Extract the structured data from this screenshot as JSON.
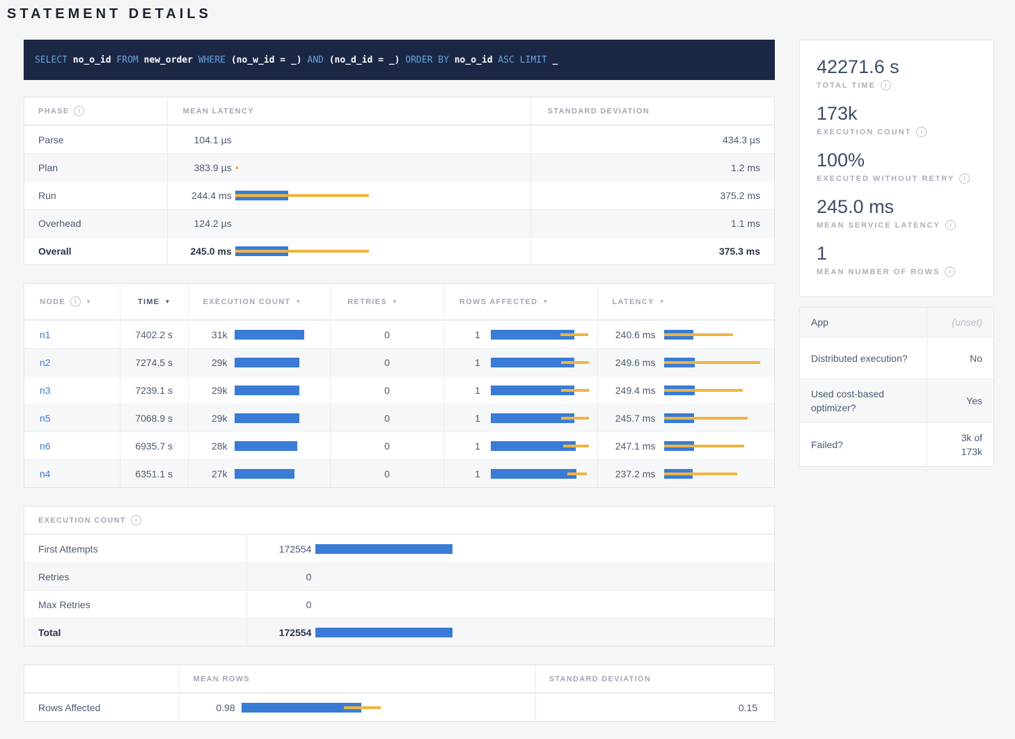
{
  "page": {
    "title": "STATEMENT DETAILS"
  },
  "icons": {
    "info": "i",
    "sort_desc": "▼"
  },
  "colors": {
    "bar_blue": "#3A7CD5",
    "bar_yellow": "#EEB541",
    "link": "#3A7CD5",
    "sql_bg": "#1A2745",
    "sql_keyword": "#67A3DB"
  },
  "sql": {
    "tokens": [
      "SELECT",
      "no_o_id",
      "FROM",
      "new_order",
      "WHERE",
      "(no_w_id = _)",
      "AND",
      "(no_d_id = _)",
      "ORDER BY",
      "no_o_id",
      "ASC",
      "LIMIT",
      "_"
    ]
  },
  "phase_table": {
    "col_phase": "PHASE",
    "col_mean": "MEAN LATENCY",
    "col_sd": "STANDARD DEVIATION",
    "rows": [
      {
        "label": "Parse",
        "mean": "104.1 µs",
        "sd": "434.3 µs"
      },
      {
        "label": "Plan",
        "mean": "383.9 µs",
        "sd": "1.2 ms",
        "bar": {
          "blue": 0,
          "yellow": 3,
          "yellowLeft": 1
        }
      },
      {
        "label": "Run",
        "mean": "244.4 ms",
        "sd": "375.2 ms",
        "bar": {
          "blue": 76,
          "yellow": 192,
          "yellowLeft": 0
        }
      },
      {
        "label": "Overhead",
        "mean": "124.2 µs",
        "sd": "1.1 ms"
      },
      {
        "label": "Overall",
        "mean": "245.0 ms",
        "sd": "375.3 ms",
        "bar": {
          "blue": 76,
          "yellow": 192,
          "yellowLeft": 0
        }
      }
    ]
  },
  "node_table": {
    "col_node": "NODE",
    "col_time": "TIME",
    "col_exec": "EXECUTION COUNT",
    "col_retries": "RETRIES",
    "col_rows": "ROWS AFFECTED",
    "col_latency": "LATENCY",
    "rows": [
      {
        "node": "n1",
        "time": "7402.2 s",
        "exec": "31k",
        "exec_bar": {
          "blue": 100,
          "yellow": 0,
          "yellowLeft": 0
        },
        "retries": "0",
        "rows": "1",
        "rows_bar": {
          "blue": 120,
          "yellow": 40,
          "yellowLeft": 100
        },
        "latency": "240.6 ms",
        "lat_bar": {
          "blue": 42,
          "yellow": 99,
          "yellowLeft": 0
        }
      },
      {
        "node": "n2",
        "time": "7274.5 s",
        "exec": "29k",
        "exec_bar": {
          "blue": 93,
          "yellow": 0,
          "yellowLeft": 0
        },
        "retries": "0",
        "rows": "1",
        "rows_bar": {
          "blue": 120,
          "yellow": 40,
          "yellowLeft": 101
        },
        "latency": "249.6 ms",
        "lat_bar": {
          "blue": 44,
          "yellow": 138,
          "yellowLeft": 0
        }
      },
      {
        "node": "n3",
        "time": "7239.1 s",
        "exec": "29k",
        "exec_bar": {
          "blue": 93,
          "yellow": 0,
          "yellowLeft": 0
        },
        "retries": "0",
        "rows": "1",
        "rows_bar": {
          "blue": 120,
          "yellow": 40,
          "yellowLeft": 101
        },
        "latency": "249.4 ms",
        "lat_bar": {
          "blue": 44,
          "yellow": 113,
          "yellowLeft": 0
        }
      },
      {
        "node": "n5",
        "time": "7068.9 s",
        "exec": "29k",
        "exec_bar": {
          "blue": 93,
          "yellow": 0,
          "yellowLeft": 0
        },
        "retries": "0",
        "rows": "1",
        "rows_bar": {
          "blue": 120,
          "yellow": 40,
          "yellowLeft": 101
        },
        "latency": "245.7 ms",
        "lat_bar": {
          "blue": 43,
          "yellow": 120,
          "yellowLeft": 0
        }
      },
      {
        "node": "n6",
        "time": "6935.7 s",
        "exec": "28k",
        "exec_bar": {
          "blue": 90,
          "yellow": 0,
          "yellowLeft": 0
        },
        "retries": "0",
        "rows": "1",
        "rows_bar": {
          "blue": 122,
          "yellow": 37,
          "yellowLeft": 104
        },
        "latency": "247.1 ms",
        "lat_bar": {
          "blue": 43,
          "yellow": 115,
          "yellowLeft": 0
        }
      },
      {
        "node": "n4",
        "time": "6351.1 s",
        "exec": "27k",
        "exec_bar": {
          "blue": 86,
          "yellow": 0,
          "yellowLeft": 0
        },
        "retries": "0",
        "rows": "1",
        "rows_bar": {
          "blue": 123,
          "yellow": 28,
          "yellowLeft": 110
        },
        "latency": "237.2 ms",
        "lat_bar": {
          "blue": 41,
          "yellow": 105,
          "yellowLeft": 0
        }
      }
    ]
  },
  "execution_count_table": {
    "title": "EXECUTION COUNT",
    "rows": [
      {
        "label": "First Attempts",
        "value": "172554",
        "bar": {
          "blue": 197,
          "yellow": 0,
          "yellowLeft": 0
        }
      },
      {
        "label": "Retries",
        "value": "0"
      },
      {
        "label": "Max Retries",
        "value": "0"
      },
      {
        "label": "Total",
        "value": "172554",
        "bar": {
          "blue": 197,
          "yellow": 0,
          "yellowLeft": 0
        }
      }
    ]
  },
  "rows_affected_table": {
    "col_mean": "MEAN ROWS",
    "col_sd": "STANDARD DEVIATION",
    "row": {
      "label": "Rows Affected",
      "mean": "0.98",
      "bar": {
        "blue": 172,
        "yellow": 53,
        "yellowLeft": 147
      },
      "sd": "0.15"
    }
  },
  "stats": {
    "items": [
      {
        "value": "42271.6 s",
        "label": "TOTAL TIME"
      },
      {
        "value": "173k",
        "label": "EXECUTION COUNT"
      },
      {
        "value": "100%",
        "label": "EXECUTED WITHOUT RETRY"
      },
      {
        "value": "245.0 ms",
        "label": "MEAN SERVICE LATENCY"
      },
      {
        "value": "1",
        "label": "MEAN NUMBER OF ROWS"
      }
    ]
  },
  "app_table": {
    "rows": [
      {
        "label": "App",
        "value": "(unset)"
      },
      {
        "label": "Distributed execution?",
        "value": "No"
      },
      {
        "label": "Used cost-based optimizer?",
        "value": "Yes"
      },
      {
        "label": "Failed?",
        "value": "3k of 173k"
      }
    ]
  }
}
